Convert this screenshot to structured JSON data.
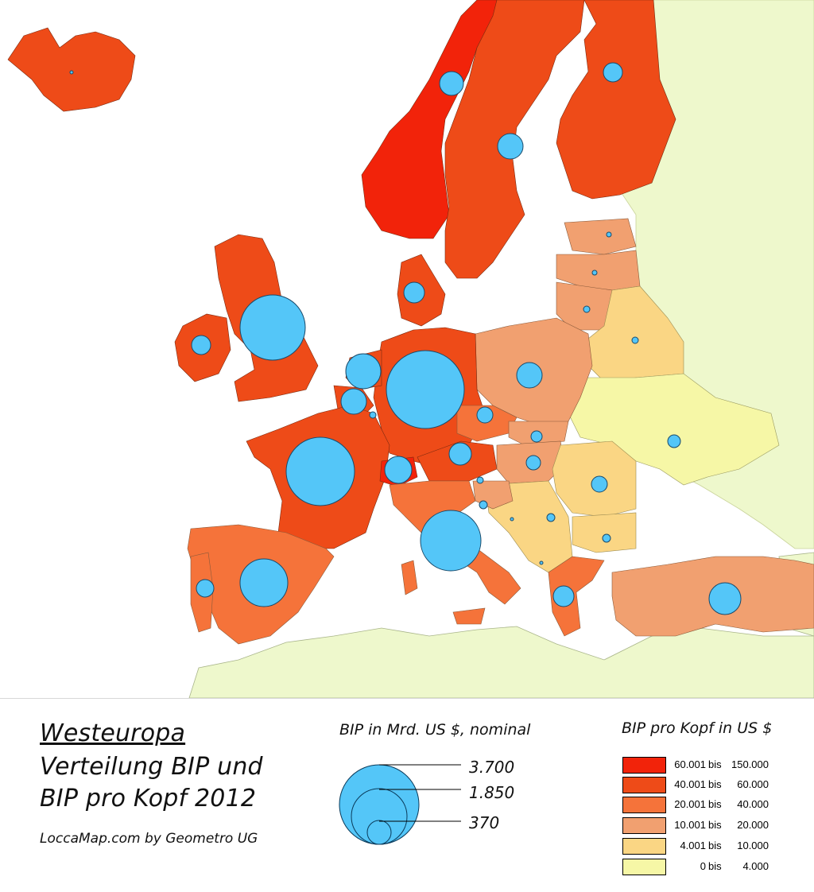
{
  "title": {
    "line1": "Westeuropa",
    "line2": "Verteilung BIP und",
    "line3": "BIP pro Kopf 2012",
    "credit": "LoccaMap.com by Geometro UG"
  },
  "legend_gdp": {
    "title": "BIP in Mrd. US $, nominal",
    "sizes": [
      {
        "label": "3.700",
        "value": 3700
      },
      {
        "label": "1.850",
        "value": 1850
      },
      {
        "label": "370",
        "value": 370
      }
    ],
    "bubble_color": "#54c6f8"
  },
  "legend_per_capita": {
    "title": "BIP pro Kopf in US $",
    "classes": [
      {
        "from": "60.001",
        "bis": "bis",
        "to": "150.000",
        "color": "#f2230a"
      },
      {
        "from": "40.001",
        "bis": "bis",
        "to": "60.000",
        "color": "#ee4b18"
      },
      {
        "from": "20.001",
        "bis": "bis",
        "to": "40.000",
        "color": "#f5733a"
      },
      {
        "from": "10.001",
        "bis": "bis",
        "to": "20.000",
        "color": "#f1a070"
      },
      {
        "from": "4.001",
        "bis": "bis",
        "to": "10.000",
        "color": "#fad684"
      },
      {
        "from": "0",
        "bis": "bis",
        "to": "4.000",
        "color": "#f6f7a6"
      }
    ]
  },
  "map": {
    "sea_color": "#ffffff",
    "outside_color": "#eef8cc",
    "border_color": "#8a8a8a",
    "no_data_color": "#f5f9dc"
  }
}
